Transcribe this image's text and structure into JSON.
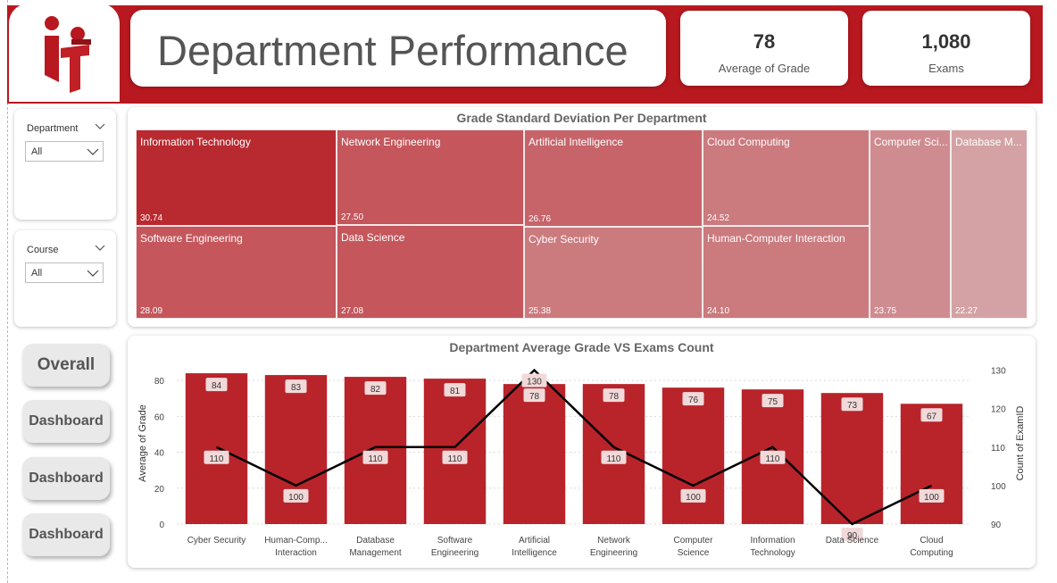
{
  "header": {
    "title": "Department Performance",
    "logo_text": "iti"
  },
  "kpis": {
    "average_grade": {
      "value": "78",
      "label": "Average of Grade"
    },
    "exams": {
      "value": "1,080",
      "label": "Exams"
    }
  },
  "slicers": {
    "department": {
      "title": "Department",
      "value": "All"
    },
    "course": {
      "title": "Course",
      "value": "All"
    }
  },
  "nav": {
    "overall": "Overall",
    "dashboard_1": "Dashboard",
    "dashboard_2": "Dashboard",
    "dashboard_3": "Dashboard"
  },
  "colors": {
    "banner": "#b8181f",
    "bar": "#b8242a",
    "line": "#000000",
    "treemap_shades": [
      "#b82a30",
      "#c4565c",
      "#c66469",
      "#cb7a7e",
      "#cf8c90",
      "#d4a2a4"
    ]
  },
  "treemap": {
    "title": "Grade Standard Deviation Per Department",
    "tiles": [
      {
        "label": "Information Technology",
        "value": "30.74"
      },
      {
        "label": "Software Engineering",
        "value": "28.09"
      },
      {
        "label": "Network Engineering",
        "value": "27.50"
      },
      {
        "label": "Data Science",
        "value": "27.08"
      },
      {
        "label": "Artificial Intelligence",
        "value": "26.76"
      },
      {
        "label": "Cyber Security",
        "value": "25.38"
      },
      {
        "label": "Cloud Computing",
        "value": "24.52"
      },
      {
        "label": "Human-Computer Interaction",
        "value": "24.10"
      },
      {
        "label": "Computer Sci...",
        "value": "23.75"
      },
      {
        "label": "Database M...",
        "value": "22.27"
      }
    ]
  },
  "chart_data": {
    "type": "bar",
    "title": "Department Average Grade VS Exams Count",
    "categories": [
      [
        "Cyber Security"
      ],
      [
        "Human-Comp...",
        "Interaction"
      ],
      [
        "Database",
        "Management"
      ],
      [
        "Software",
        "Engineering"
      ],
      [
        "Artificial",
        "Intelligence"
      ],
      [
        "Network",
        "Engineering"
      ],
      [
        "Computer",
        "Science"
      ],
      [
        "Information",
        "Technology"
      ],
      [
        "Data Science"
      ],
      [
        "Cloud",
        "Computing"
      ]
    ],
    "series": [
      {
        "name": "Average of Grade",
        "kind": "bar",
        "axis": "left",
        "values": [
          84,
          83,
          82,
          81,
          78,
          78,
          76,
          75,
          73,
          67
        ]
      },
      {
        "name": "Count of ExamID",
        "kind": "line",
        "axis": "right",
        "values": [
          110,
          100,
          110,
          110,
          130,
          110,
          100,
          110,
          90,
          100
        ]
      }
    ],
    "ylabel": "Average of Grade",
    "y2label": "Count of ExamID",
    "ylim": [
      0,
      90
    ],
    "y2lim": [
      90,
      132
    ],
    "yticks": [
      0,
      20,
      40,
      60,
      80
    ],
    "y2ticks": [
      90,
      100,
      110,
      120,
      130
    ],
    "grid": true
  }
}
